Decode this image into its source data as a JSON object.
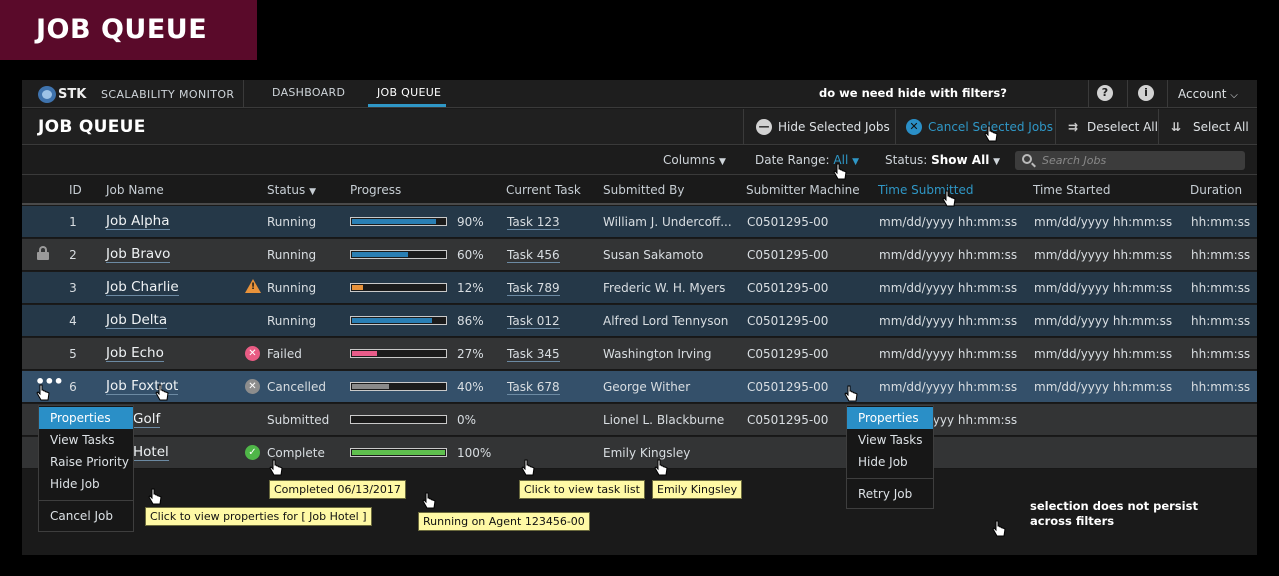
{
  "banner": {
    "title": "JOB QUEUE"
  },
  "nav": {
    "brand": "STK",
    "app_name": "SCALABILITY MONITOR",
    "tabs": [
      "DASHBOARD",
      "JOB QUEUE"
    ],
    "note": "do we need hide with filters?",
    "help_icon": "?",
    "info_icon": "i",
    "account": "Account"
  },
  "header": {
    "title": "JOB QUEUE",
    "buttons": {
      "hide_selected": "Hide Selected Jobs",
      "cancel_selected": "Cancel Selected Jobs",
      "deselect_all": "Deselect All",
      "select_all": "Select All"
    }
  },
  "filters": {
    "columns": "Columns",
    "date_range_label": "Date Range:",
    "date_range_value": "All",
    "status_label": "Status:",
    "status_value": "Show All",
    "search_placeholder": "Search Jobs"
  },
  "columns": [
    "ID",
    "Job Name",
    "Status",
    "Progress",
    "Current Task",
    "Submitted By",
    "Submitter Machine",
    "Time Submitted",
    "Time Started",
    "Duration"
  ],
  "rows": [
    {
      "id": "1",
      "name": "Job  Alpha",
      "status": "Running",
      "progress": 90,
      "progress_text": "90%",
      "task": "Task 123",
      "submitted_by": "William J. Undercoff...",
      "machine": "C0501295-00",
      "time_submitted": "mm/dd/yyyy  hh:mm:ss",
      "time_started": "mm/dd/yyyy  hh:mm:ss",
      "duration": "hh:mm:ss"
    },
    {
      "id": "2",
      "name": "Job Bravo",
      "status": "Running",
      "progress": 60,
      "progress_text": "60%",
      "task": "Task 456",
      "submitted_by": "Susan Sakamoto",
      "machine": "C0501295-00",
      "time_submitted": "mm/dd/yyyy  hh:mm:ss",
      "time_started": "mm/dd/yyyy  hh:mm:ss",
      "duration": "hh:mm:ss"
    },
    {
      "id": "3",
      "name": "Job Charlie",
      "status": "Running",
      "progress": 12,
      "progress_text": "12%",
      "task": "Task 789",
      "submitted_by": "Frederic W. H. Myers",
      "machine": "C0501295-00",
      "time_submitted": "mm/dd/yyyy  hh:mm:ss",
      "time_started": "mm/dd/yyyy  hh:mm:ss",
      "duration": "hh:mm:ss"
    },
    {
      "id": "4",
      "name": "Job Delta",
      "status": "Running",
      "progress": 86,
      "progress_text": "86%",
      "task": "Task 012",
      "submitted_by": "Alfred Lord Tennyson",
      "machine": "C0501295-00",
      "time_submitted": "mm/dd/yyyy  hh:mm:ss",
      "time_started": "mm/dd/yyyy  hh:mm:ss",
      "duration": "hh:mm:ss"
    },
    {
      "id": "5",
      "name": "Job Echo",
      "status": "Failed",
      "progress": 27,
      "progress_text": "27%",
      "task": "Task 345",
      "submitted_by": "Washington Irving",
      "machine": "C0501295-00",
      "time_submitted": "mm/dd/yyyy  hh:mm:ss",
      "time_started": "mm/dd/yyyy  hh:mm:ss",
      "duration": "hh:mm:ss"
    },
    {
      "id": "6",
      "name": "Job Foxtrot",
      "status": "Cancelled",
      "progress": 40,
      "progress_text": "40%",
      "task": "Task 678",
      "submitted_by": "George Wither",
      "machine": "C0501295-00",
      "time_submitted": "mm/dd/yyyy  hh:mm:ss",
      "time_started": "mm/dd/yyyy  hh:mm:ss",
      "duration": "hh:mm:ss"
    },
    {
      "id": "",
      "name": "Golf",
      "status": "Submitted",
      "progress": 0,
      "progress_text": "0%",
      "task": "",
      "submitted_by": "Lionel L. Blackburne",
      "machine": "C0501295-00",
      "time_submitted": "mm/dd/yyyy  hh:mm:ss",
      "time_started": "",
      "duration": ""
    },
    {
      "id": "",
      "name": "Hotel",
      "status": "Complete",
      "progress": 100,
      "progress_text": "100%",
      "task": "",
      "submitted_by": "Emily Kingsley",
      "machine": "",
      "time_submitted": "",
      "time_started": "",
      "duration": ""
    }
  ],
  "colors": {
    "accent": "#2a8fc7",
    "progress_blue": "#2a7fb4",
    "progress_orange": "#e8923a",
    "progress_pink": "#e95c8a",
    "progress_grey": "#8a8a8a",
    "progress_green": "#5fbf4e",
    "failed": "#e85b83",
    "complete": "#4fb648",
    "warning": "#e8923a"
  },
  "row_menu": [
    "Properties",
    "View Tasks",
    "Raise Priority",
    "Hide Job",
    "Cancel Job"
  ],
  "column_menu": [
    "Properties",
    "View Tasks",
    "Hide Job",
    "Retry Job"
  ],
  "tooltips": {
    "completed": "Completed 06/13/2017",
    "view_properties": "Click to view properties for [ Job Hotel ]",
    "running_on": "Running on Agent 123456-00",
    "view_tasks": "Click to view task list",
    "name": "Emily Kingsley"
  },
  "annotation": {
    "line1": "selection does not persist",
    "line2": "across filters"
  }
}
